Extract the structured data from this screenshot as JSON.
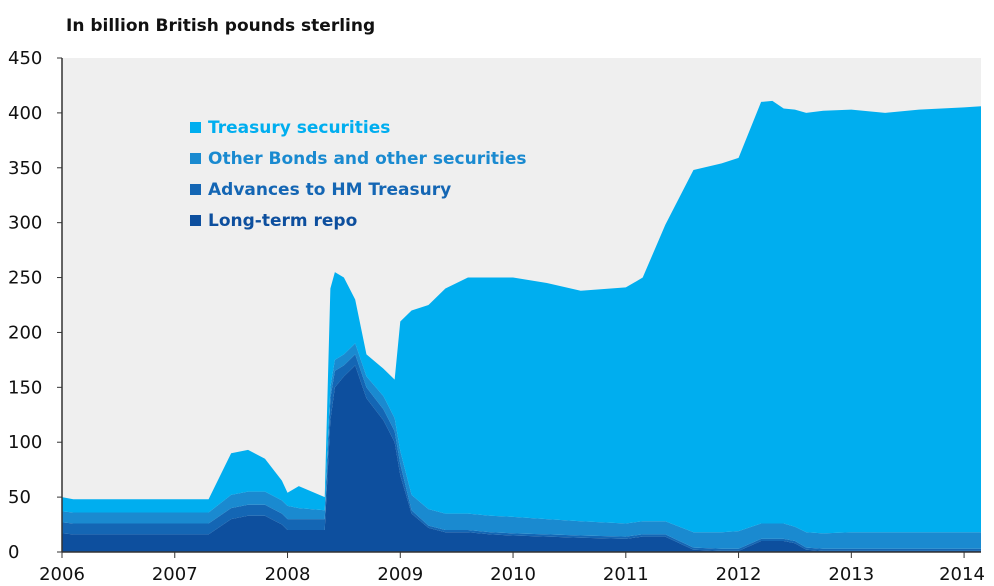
{
  "chart_data": {
    "type": "area",
    "stacked": true,
    "title": "In billion British pounds sterling",
    "xlabel": "",
    "ylabel": "",
    "ylim": [
      0,
      450
    ],
    "yticks": [
      0,
      50,
      100,
      150,
      200,
      250,
      300,
      350,
      400,
      450
    ],
    "xlim": [
      2006.0,
      2014.15
    ],
    "xticks": [
      {
        "value": 2006,
        "label": "2006"
      },
      {
        "value": 2007,
        "label": "2007"
      },
      {
        "value": 2008,
        "label": "2008"
      },
      {
        "value": 2009,
        "label": "2009"
      },
      {
        "value": 2010,
        "label": "2010"
      },
      {
        "value": 2011,
        "label": "2011"
      },
      {
        "value": 2012,
        "label": "2012"
      },
      {
        "value": 2013,
        "label": "2013"
      },
      {
        "value": 2014,
        "label": "2014"
      }
    ],
    "grid": false,
    "legend_position": "top-left",
    "colors": {
      "plot_background": "#efefef",
      "axis": "#333333"
    },
    "x": [
      2006.0,
      2006.1,
      2006.5,
      2007.0,
      2007.3,
      2007.5,
      2007.65,
      2007.8,
      2007.95,
      2008.0,
      2008.1,
      2008.33,
      2008.38,
      2008.42,
      2008.5,
      2008.6,
      2008.7,
      2008.85,
      2008.95,
      2009.0,
      2009.1,
      2009.25,
      2009.4,
      2009.6,
      2009.8,
      2010.0,
      2010.3,
      2010.6,
      2011.0,
      2011.15,
      2011.35,
      2011.6,
      2011.85,
      2012.0,
      2012.2,
      2012.3,
      2012.4,
      2012.5,
      2012.6,
      2012.75,
      2013.0,
      2013.3,
      2013.6,
      2014.0,
      2014.15
    ],
    "series": [
      {
        "name": "Long-term repo",
        "color": "#0d4f9e",
        "values": [
          17,
          16,
          16,
          16,
          16,
          30,
          33,
          33,
          25,
          20,
          20,
          20,
          120,
          150,
          160,
          170,
          140,
          120,
          100,
          70,
          35,
          22,
          18,
          18,
          16,
          15,
          14,
          13,
          12,
          14,
          14,
          2,
          1,
          1,
          10,
          10,
          10,
          8,
          2,
          1,
          1,
          1,
          1,
          1,
          1
        ]
      },
      {
        "name": "Advances to HM Treasury",
        "color": "#1466b4",
        "values": [
          10,
          10,
          10,
          10,
          10,
          10,
          10,
          10,
          10,
          10,
          10,
          10,
          20,
          15,
          10,
          10,
          10,
          10,
          10,
          10,
          3,
          2,
          2,
          2,
          2,
          2,
          2,
          2,
          2,
          2,
          2,
          2,
          2,
          2,
          2,
          2,
          2,
          2,
          2,
          2,
          2,
          2,
          2,
          2,
          2
        ]
      },
      {
        "name": "Other Bonds and other securities",
        "color": "#1a8ad0",
        "values": [
          10,
          10,
          10,
          10,
          10,
          12,
          12,
          12,
          12,
          12,
          10,
          8,
          10,
          10,
          10,
          10,
          10,
          12,
          12,
          12,
          14,
          15,
          15,
          15,
          15,
          15,
          14,
          13,
          12,
          12,
          12,
          14,
          15,
          16,
          14,
          14,
          14,
          13,
          14,
          14,
          15,
          15,
          15,
          15,
          15
        ]
      },
      {
        "name": "Treasury securities",
        "color": "#00aeef",
        "values": [
          13,
          12,
          12,
          12,
          12,
          38,
          38,
          30,
          18,
          12,
          20,
          12,
          90,
          80,
          70,
          40,
          20,
          25,
          35,
          118,
          168,
          186,
          205,
          215,
          217,
          218,
          215,
          210,
          215,
          222,
          270,
          330,
          336,
          340,
          384,
          385,
          378,
          380,
          382,
          385,
          385,
          382,
          385,
          387,
          388
        ]
      }
    ],
    "legend": [
      {
        "label": "Treasury securities",
        "color": "#00aeef"
      },
      {
        "label": "Other Bonds and other securities",
        "color": "#1a8ad0"
      },
      {
        "label": "Advances to HM Treasury",
        "color": "#1466b4"
      },
      {
        "label": "Long-term repo",
        "color": "#0d4f9e"
      }
    ]
  }
}
